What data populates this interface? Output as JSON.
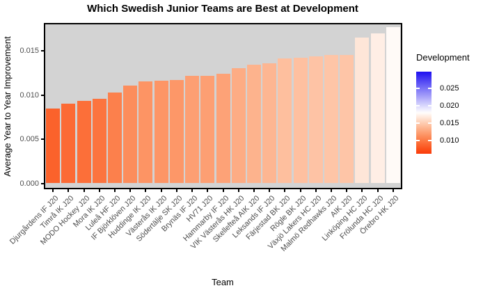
{
  "title": "Which Swedish Junior Teams are Best at Development",
  "x_axis": {
    "label": "Team"
  },
  "y_axis": {
    "label": "Average Year to Year Improvement",
    "tick_labels": [
      "0.000",
      "0.005",
      "0.010",
      "0.015"
    ],
    "tick_values": [
      0,
      0.005,
      0.01,
      0.015
    ]
  },
  "legend": {
    "title": "Development",
    "tick_labels": [
      "0.025",
      "0.020",
      "0.015",
      "0.010"
    ],
    "tick_values": [
      0.025,
      0.02,
      0.015,
      0.01
    ]
  },
  "colors": {
    "panel_background": "#D3D3D3",
    "axis_text": "#4D4D4D",
    "title_text": "#000000",
    "panel_border": "#000000",
    "scale_low": "#FA2800",
    "scale_mid": "#FFFFFF",
    "scale_high": "#1D0FF0"
  },
  "chart_data": {
    "type": "bar",
    "title": "Which Swedish Junior Teams are Best at Development",
    "xlabel": "Team",
    "ylabel": "Average Year to Year Improvement",
    "categories": [
      "Djurgårdens IF J20",
      "Timrå IK J20",
      "MODO Hockey J20",
      "Mora IK J20",
      "Luleå HF J20",
      "IF Björklöven J20",
      "Huddinge IK J20",
      "Västerås IK J20",
      "Södertälje SK J20",
      "Brynäs IF J20",
      "HV71 J20",
      "Hammarby IF J20",
      "VIK Västerås HK J20",
      "Skellefteå AIK J20",
      "Leksands IF J20",
      "Färjestad BK J20",
      "Rögle BK J20",
      "Växjö Lakers HC J20",
      "Malmö Redhawks J20",
      "AIK J20",
      "Linköping HC J20",
      "Frölunda HC J20",
      "Örebro HK J20"
    ],
    "values": [
      0.0085,
      0.009,
      0.0093,
      0.0096,
      0.0103,
      0.0111,
      0.0115,
      0.0116,
      0.0117,
      0.0122,
      0.0122,
      0.0124,
      0.013,
      0.0134,
      0.0136,
      0.0141,
      0.0142,
      0.0144,
      0.0145,
      0.0145,
      0.0165,
      0.017,
      0.0177
    ],
    "ylim": [
      0,
      0.0182
    ],
    "grid": false,
    "legend_position": "right",
    "color_scale": {
      "title": "Development",
      "type": "gradient2",
      "low": "#FA2800",
      "mid": "#FFFFFF",
      "high": "#1D0FF0",
      "midpoint": 0.018,
      "legend_range": [
        0.0061,
        0.0297
      ],
      "legend_ticks": [
        0.025,
        0.02,
        0.015,
        0.01
      ]
    }
  }
}
